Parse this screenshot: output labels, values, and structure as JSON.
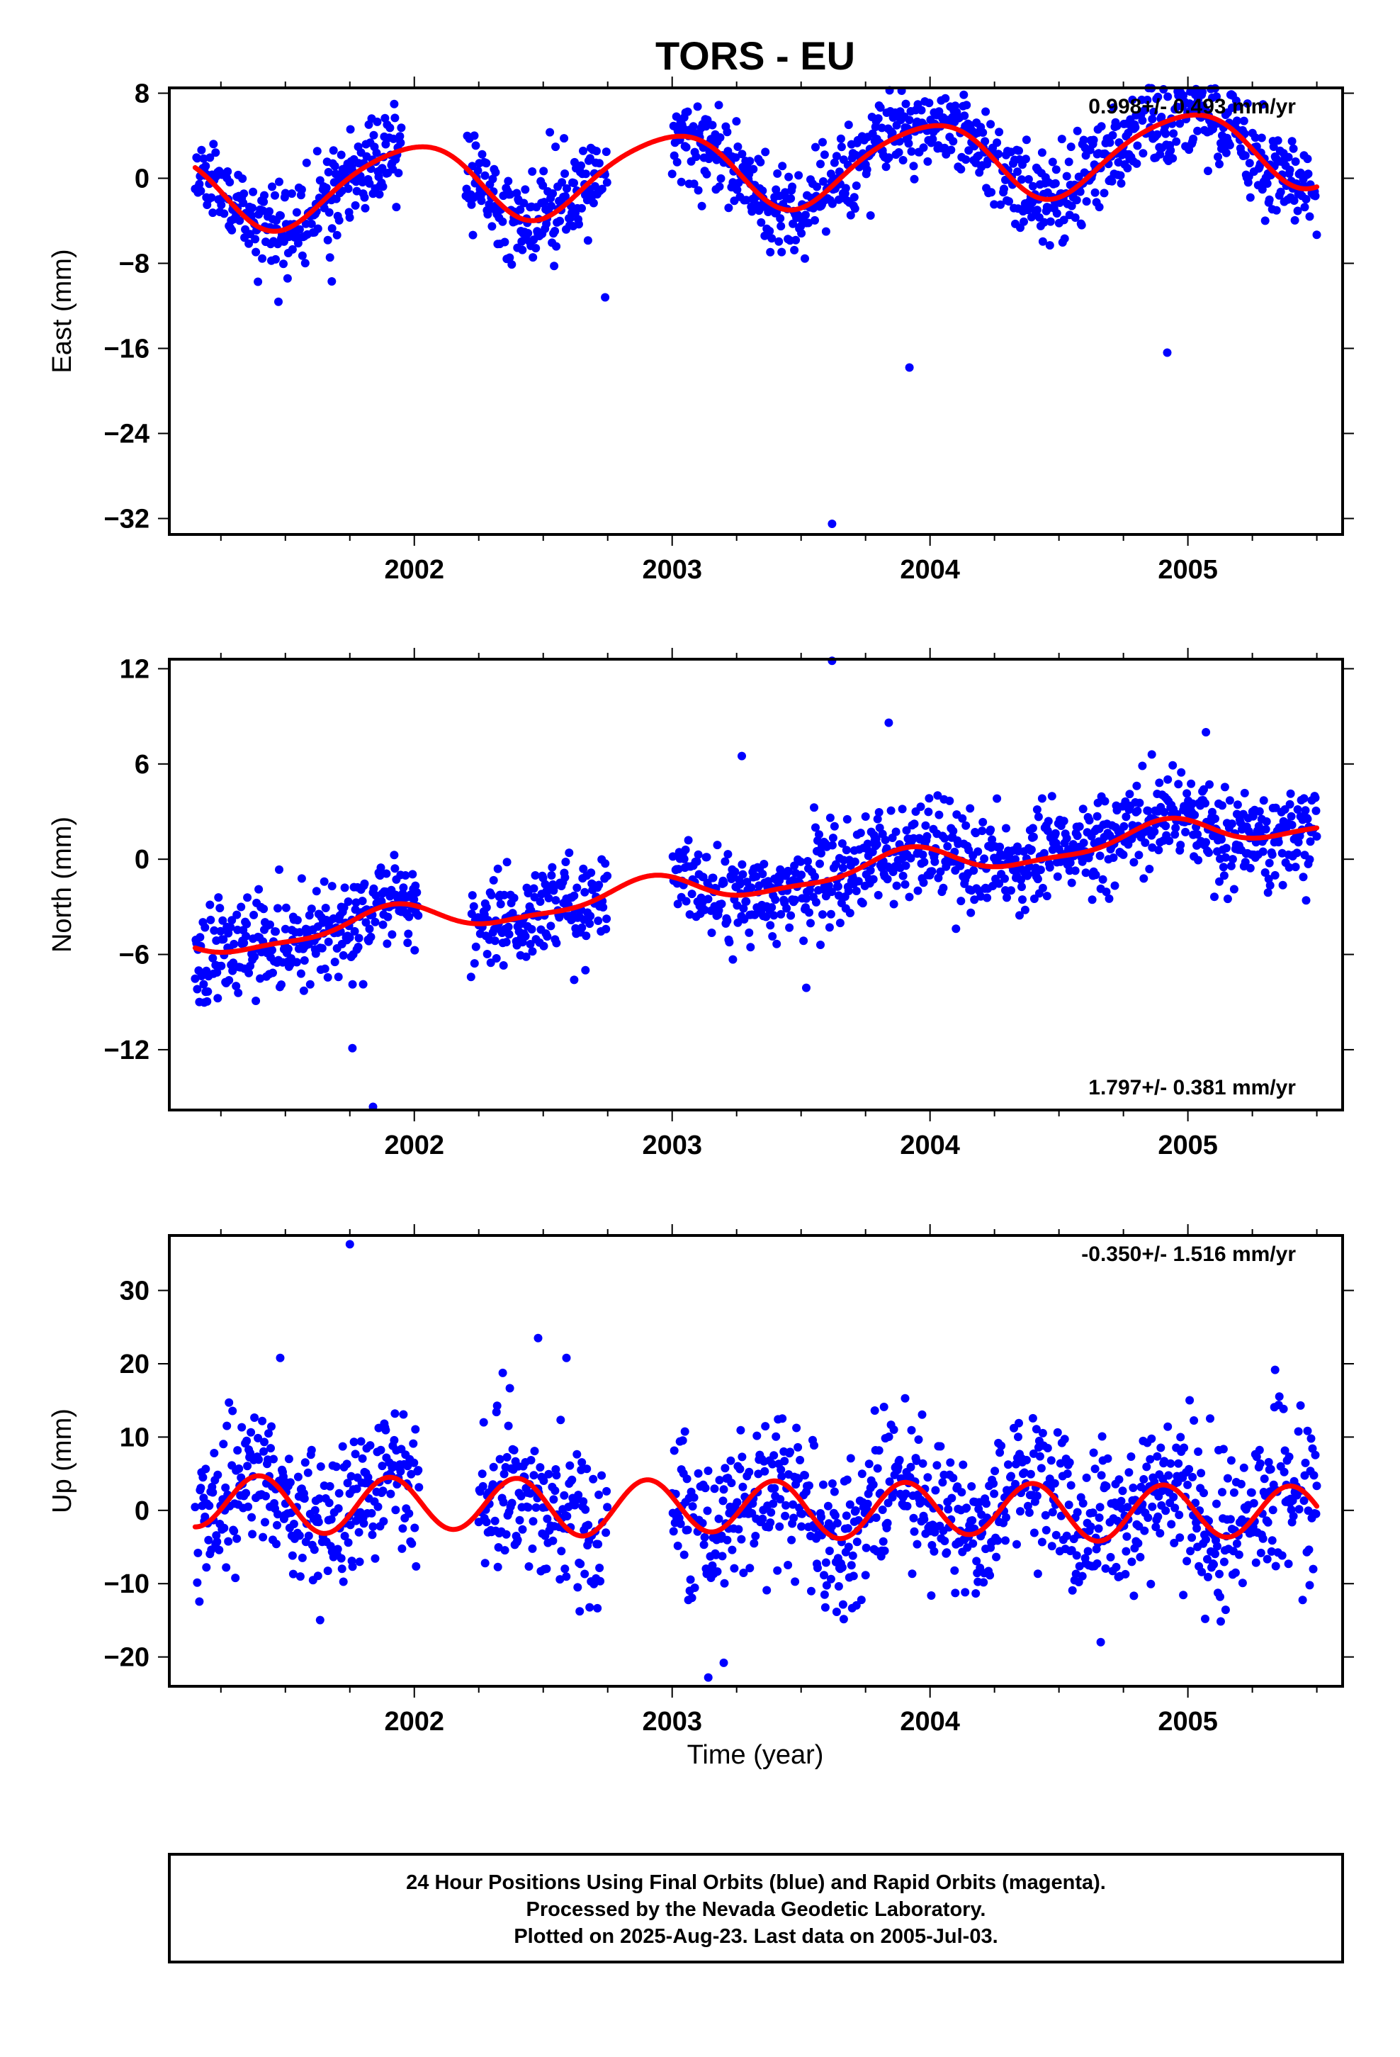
{
  "title": "TORS - EU",
  "xlabel": "Time (year)",
  "caption": {
    "line1": "24 Hour Positions Using Final Orbits (blue) and Rapid Orbits (magenta).",
    "line2": "Processed by the Nevada Geodetic Laboratory.",
    "line3": "Plotted on 2025-Aug-23. Last data on 2005-Jul-03."
  },
  "colors": {
    "points": "#0000ff",
    "fit": "#ff0000",
    "frame": "#000000"
  },
  "chart_data": [
    {
      "type": "scatter",
      "name": "east",
      "ylabel": "East (mm)",
      "rate_label": "0.998+/- 0.493 mm/yr",
      "rate_position": "top-right",
      "xlim": [
        2001.05,
        2005.6
      ],
      "ylim": [
        -33.5,
        8.5
      ],
      "yticks": [
        8,
        0,
        -8,
        -16,
        -24,
        -32
      ],
      "xticks": [
        2002,
        2003,
        2004,
        2005
      ],
      "data_spans": [
        [
          2001.15,
          2001.95
        ],
        [
          2002.2,
          2002.75
        ],
        [
          2003.0,
          2005.5
        ]
      ],
      "fit_model": {
        "a": 1.0,
        "b": 0.998,
        "A1": -0.42,
        "B1": 3.6,
        "A2": 0.4,
        "B2": -0.3,
        "t0": 2003.4
      },
      "noise_sd": 2.1,
      "seed": 11,
      "outliers": [
        [
          2003.62,
          -32.5
        ],
        [
          2004.92,
          -16.4
        ],
        [
          2003.92,
          -17.8
        ],
        [
          2002.74,
          -11.2
        ],
        [
          2001.68,
          -9.7
        ]
      ],
      "grid": false
    },
    {
      "type": "scatter",
      "name": "north",
      "ylabel": "North (mm)",
      "rate_label": "1.797+/- 0.381 mm/yr",
      "rate_position": "bottom-right",
      "xlim": [
        2001.05,
        2005.6
      ],
      "ylim": [
        -15.8,
        12.6
      ],
      "yticks": [
        12,
        6,
        0,
        -6,
        -12
      ],
      "xticks": [
        2002,
        2003,
        2004,
        2005
      ],
      "data_spans": [
        [
          2001.15,
          2002.02
        ],
        [
          2002.22,
          2002.75
        ],
        [
          2003.0,
          2005.5
        ]
      ],
      "fit_model": {
        "a": -1.3,
        "b": 1.797,
        "A1": -0.5,
        "B1": 0.7,
        "A2": -0.2,
        "B2": 0.2,
        "t0": 2003.4
      },
      "noise_sd": 1.5,
      "seed": 23,
      "outliers": [
        [
          2003.62,
          12.5
        ],
        [
          2003.84,
          8.6
        ],
        [
          2003.27,
          6.5
        ],
        [
          2004.86,
          6.6
        ],
        [
          2005.07,
          8.0
        ],
        [
          2001.84,
          -15.6
        ],
        [
          2001.76,
          -11.9
        ],
        [
          2003.52,
          -8.1
        ],
        [
          2002.62,
          -7.6
        ]
      ],
      "grid": false
    },
    {
      "type": "scatter",
      "name": "up",
      "ylabel": "Up (mm)",
      "rate_label": "-0.350+/- 1.516 mm/yr",
      "rate_position": "top-right",
      "xlim": [
        2001.05,
        2005.6
      ],
      "ylim": [
        -24,
        37.5
      ],
      "yticks": [
        30,
        20,
        10,
        0,
        -10,
        -20
      ],
      "xticks": [
        2002,
        2003,
        2004,
        2005
      ],
      "data_spans": [
        [
          2001.15,
          2002.02
        ],
        [
          2002.25,
          2002.75
        ],
        [
          2003.0,
          2005.5
        ]
      ],
      "fit_model": {
        "a": 0.3,
        "b": -0.35,
        "A1": 0.3,
        "B1": 0.2,
        "A2": -3.5,
        "B2": 1.2,
        "t0": 2003.4
      },
      "noise_sd": 5.0,
      "seed": 37,
      "outliers": [
        [
          2001.75,
          36.3
        ],
        [
          2002.48,
          23.5
        ],
        [
          2002.59,
          20.8
        ],
        [
          2001.48,
          20.8
        ],
        [
          2003.14,
          -22.8
        ],
        [
          2003.2,
          -20.8
        ]
      ],
      "grid": false
    }
  ]
}
